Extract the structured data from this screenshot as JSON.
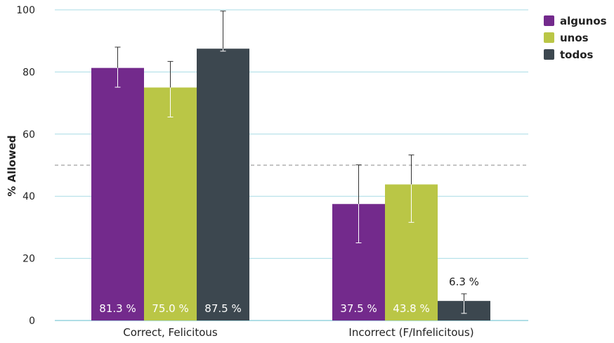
{
  "chart_data": {
    "type": "bar",
    "categories": [
      "Correct, Felicitous",
      "Incorrect (F/Infelicitous)"
    ],
    "series": [
      {
        "name": "algunos",
        "color": "#732a8c",
        "values": [
          81.3,
          37.5
        ],
        "err_low": [
          75.1,
          25.0
        ],
        "err_high": [
          88.0,
          50.1
        ],
        "labels": [
          "81.3 %",
          "37.5 %"
        ]
      },
      {
        "name": "unos",
        "color": "#bac646",
        "values": [
          75.0,
          43.8
        ],
        "err_low": [
          65.5,
          31.6
        ],
        "err_high": [
          83.4,
          53.3
        ],
        "labels": [
          "75.0 %",
          "43.8 %"
        ]
      },
      {
        "name": "todos",
        "color": "#3c474f",
        "values": [
          87.5,
          6.3
        ],
        "err_low": [
          86.7,
          2.3
        ],
        "err_high": [
          99.6,
          8.6
        ],
        "labels": [
          "87.5 %",
          "6.3 %"
        ]
      }
    ],
    "xlabel": "",
    "ylabel": "% Allowed",
    "ylim": [
      0,
      100
    ],
    "yticks": [
      0,
      20,
      40,
      60,
      80,
      100
    ],
    "reference_line": 50,
    "grid": true,
    "legend_position": "top-right"
  }
}
